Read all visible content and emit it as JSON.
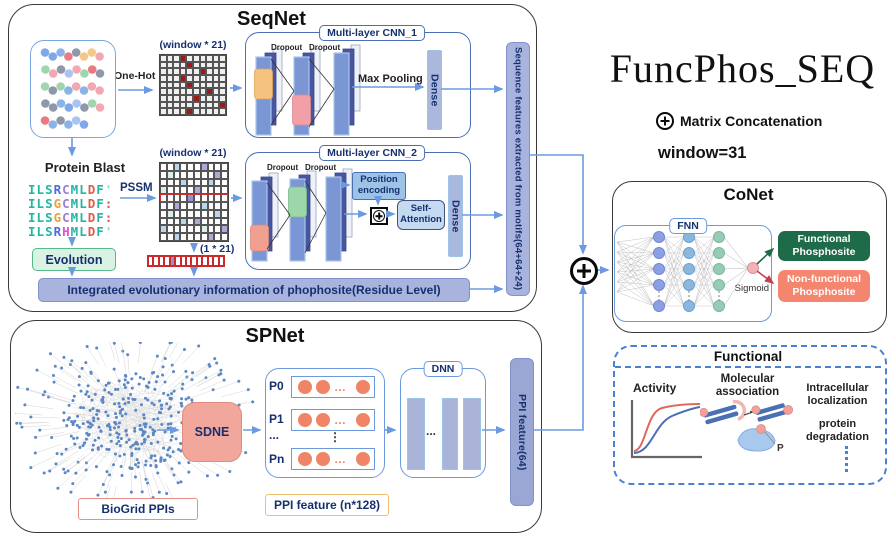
{
  "colors": {
    "arrow": "#6c9ae0",
    "bar_fill": "#a9b4de",
    "bar_border": "#8191cc",
    "onehot_red": "#9e1a1a",
    "evolution_green": "#57b98a",
    "sdne_salmon": "#f2a79c",
    "functional_green": "#1e6b4a",
    "nonfunctional_salmon": "#f4856e",
    "node_col1": "#8d9fe3",
    "node_col2": "#89b7de",
    "node_col3": "#96cbb4",
    "sigmoid_node": "#f2b3b8",
    "dashed_blue": "#4a7fd4"
  },
  "icons": {
    "plus": "+",
    "hdots": "…",
    "vdots": "⋮",
    "ddd": "..."
  },
  "seqnet": {
    "title": "SeqNet",
    "one_hot": "One-Hot",
    "window_label": "(window * 21)",
    "cnn1_title": "Multi-layer CNN_1",
    "cnn2_title": "Multi-layer CNN_2",
    "dropout": "Dropout",
    "max_pooling": "Max Pooling",
    "dense": "Dense",
    "protein_blast": "Protein Blast",
    "pssm": "PSSM",
    "evolution": "Evolution",
    "vector_label": "(1 * 21)",
    "position_encoding": "Position encoding",
    "self_attention": "Self-Attention",
    "integrated_bar": "Integrated evolutionary information of phophosite(Residue Level)",
    "seq_features_bar": "Sequence features extracted from motifs(64+64+24)",
    "blast_rows": [
      "ILSRCMLDF'",
      "ILSGCMLDF:",
      "ILSGCMLDF:",
      "ILSRHMLDF'"
    ],
    "letter_colors": {
      "I": "#23b5a5",
      "L": "#23b5a5",
      "S": "#23b5a5",
      "R": "#4f6bd8",
      "C": "#9a7fd4",
      "M": "#23b5a5",
      "D": "#e25a4a",
      "F": "#23b5a5",
      "G": "#f0a038",
      "H": "#e84fd0",
      "'": "#9ad4cc",
      ":": "#e25a4a"
    },
    "one_hot_grid": {
      "rows": 9,
      "cols": 10,
      "default": "#efefef",
      "line": "#555",
      "cells": {
        "0,3": "#9e1a1a",
        "1,4": "#9e1a1a",
        "2,6": "#9e1a1a",
        "3,3": "#9e1a1a",
        "4,4": "#9e1a1a",
        "5,7": "#9e1a1a",
        "6,5": "#9e1a1a",
        "7,9": "#9e1a1a",
        "8,4": "#9e1a1a"
      }
    },
    "pssm_grid": {
      "rows": 10,
      "cols": 10,
      "default": "#fdfdfd",
      "line": "#555",
      "highlight_row": 4,
      "cells": {
        "0,2": "#b9d5ee",
        "0,6": "#aea8d8",
        "1,1": "#d9f0e4",
        "1,8": "#aea8d8",
        "2,3": "#b9d5ee",
        "2,7": "#b9d5ee",
        "3,0": "#d9f0e4",
        "3,5": "#aea8d8",
        "4,4": "#9a8fd0",
        "5,2": "#aea8d8",
        "5,6": "#b9d5ee",
        "6,1": "#d9f0e4",
        "6,8": "#b9d5ee",
        "7,3": "#b9d5ee",
        "7,5": "#aea8d8",
        "8,0": "#b9d5ee",
        "8,6": "#d9f0e4",
        "8,9": "#aea8d8",
        "9,2": "#b9d5ee",
        "9,7": "#aea8d8"
      }
    },
    "vector_grid": {
      "rows": 1,
      "cols": 14,
      "default": "#ffffff",
      "line": "#cc2a2a",
      "cells": {
        "0,4": "#9a8fd0"
      }
    }
  },
  "header": {
    "title": "FuncPhos_SEQ",
    "concat_legend": "Matrix Concatenation",
    "window_setting": "window=31"
  },
  "conet": {
    "title": "CoNet",
    "fnn": "FNN",
    "sigmoid": "Sigmoid",
    "functional": "Functional Phosphosite",
    "nonfunctional": "Non-functional Phosphosite"
  },
  "functional_panel": {
    "title": "Functional",
    "activity": "Activity",
    "molecular": "Molecular association",
    "intracellular": "Intracellular localization",
    "degradation": "protein degradation",
    "p_label": "P"
  },
  "spnet": {
    "title": "SPNet",
    "biogrid": "BioGrid PPIs",
    "sdne": "SDNE",
    "row_labels": [
      "P0",
      "P1",
      "...",
      "Pn"
    ],
    "ppi_feature_n": "PPI feature (n*128)",
    "dnn": "DNN",
    "ppi_feature_64": "PPI feature(64)"
  }
}
